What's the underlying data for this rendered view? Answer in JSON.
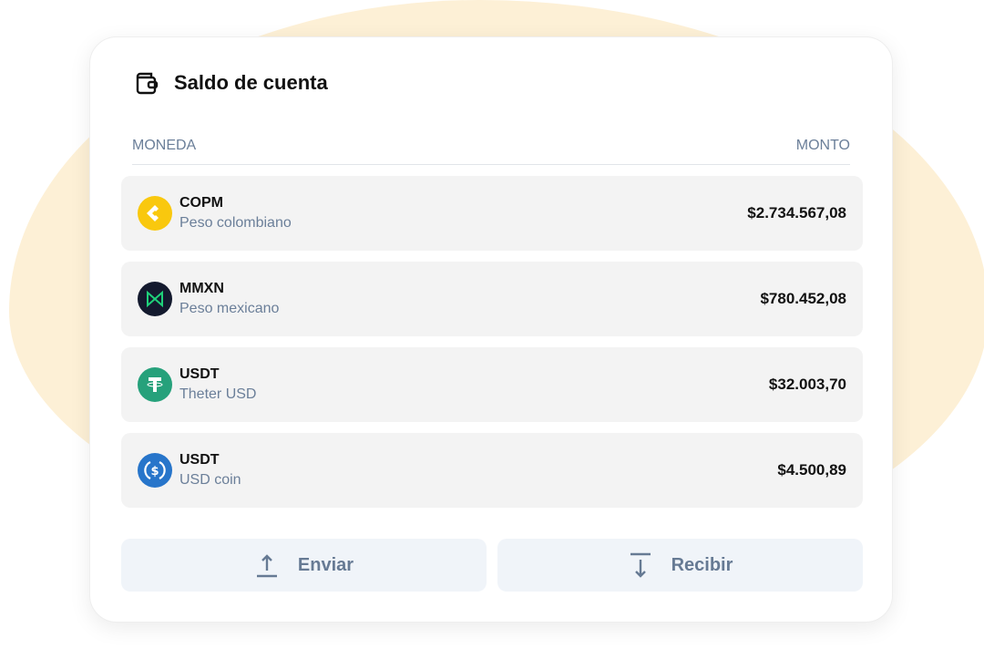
{
  "title": "Saldo de cuenta",
  "table": {
    "col_currency": "MONEDA",
    "col_amount": "MONTO"
  },
  "rows": [
    {
      "symbol": "COPM",
      "name": "Peso colombiano",
      "amount": "$2.734.567,08",
      "icon": "copm-icon",
      "color": "#f9c80e"
    },
    {
      "symbol": "MMXN",
      "name": "Peso mexicano",
      "amount": "$780.452,08",
      "icon": "mmxn-icon",
      "color": "#141a2e"
    },
    {
      "symbol": "USDT",
      "name": "Theter USD",
      "amount": "$32.003,70",
      "icon": "tether-icon",
      "color": "#26a17b"
    },
    {
      "symbol": "USDT",
      "name": "USD coin",
      "amount": "$4.500,89",
      "icon": "usdc-icon",
      "color": "#2775ca"
    }
  ],
  "actions": {
    "send": "Enviar",
    "receive": "Recibir"
  }
}
